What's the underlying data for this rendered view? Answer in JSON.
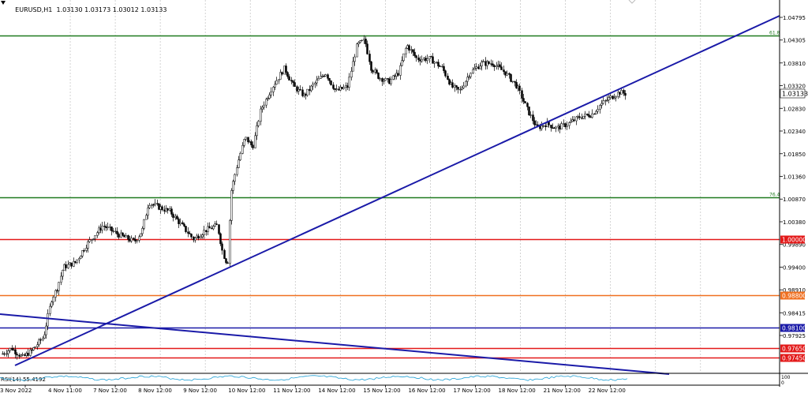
{
  "header": {
    "symbol": "EURUSD,H1",
    "quote": "1.03130 1.03173 1.03012 1.03133"
  },
  "price_axis": {
    "ticks": [
      "1.04795",
      "1.04305",
      "1.03810",
      "1.03320",
      "1.02830",
      "1.02340",
      "1.01850",
      "1.01360",
      "1.00870",
      "1.00380",
      "0.99890",
      "0.99400",
      "0.98910",
      "0.98415",
      "0.97925"
    ]
  },
  "time_axis": {
    "labels": [
      "3 Nov 2022",
      "4 Nov 11:00",
      "7 Nov 12:00",
      "8 Nov 12:00",
      "9 Nov 12:00",
      "10 Nov 12:00",
      "11 Nov 12:00",
      "14 Nov 12:00",
      "15 Nov 12:00",
      "16 Nov 12:00",
      "17 Nov 12:00",
      "18 Nov 12:00",
      "21 Nov 12:00",
      "22 Nov 12:00"
    ]
  },
  "levels": [
    {
      "price": "1.04400",
      "label": "61.8",
      "color": "#1f7a1f",
      "kind": "fib"
    },
    {
      "price": "1.00900",
      "label": "76.4",
      "color": "#1f7a1f",
      "kind": "fib"
    },
    {
      "price": "1.00000",
      "label": "1.00000",
      "color": "#e31919",
      "kind": "hline"
    },
    {
      "price": "0.98800",
      "label": "0.98800",
      "color": "#f07020",
      "kind": "hline"
    },
    {
      "price": "0.98100",
      "label": "0.98100",
      "color": "#1a1aa8",
      "kind": "hline"
    },
    {
      "price": "0.97650",
      "label": "0.97650",
      "color": "#e31919",
      "kind": "hline"
    },
    {
      "price": "0.97450",
      "label": "0.97450",
      "color": "#e31919",
      "kind": "hline"
    }
  ],
  "current_price": "1.03133",
  "indicator": {
    "label": "RSI(14) 55.4192",
    "axis_top": "100",
    "axis_bottom": "0"
  },
  "colors": {
    "candle_up": "#000000",
    "candle_down": "#000000",
    "trendline": "#1a1aa8",
    "grid": "#c8c8c8"
  }
}
